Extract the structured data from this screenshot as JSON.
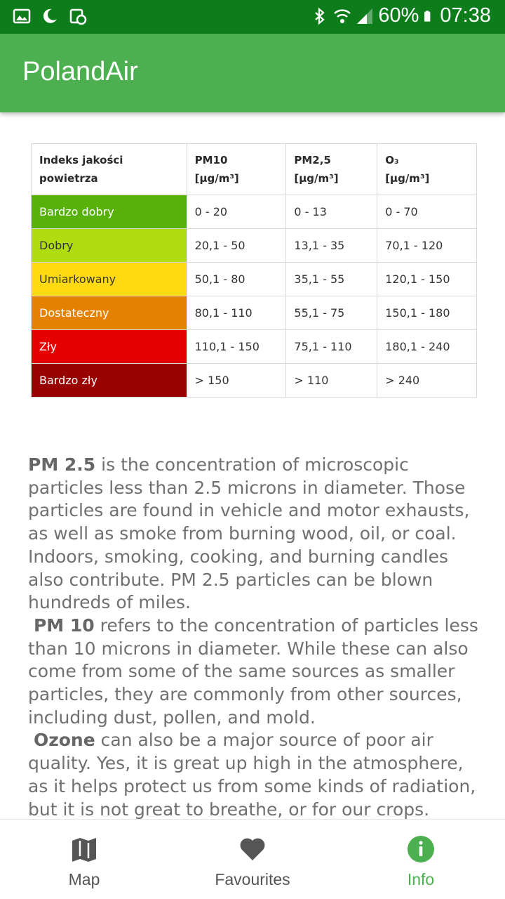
{
  "status_bar": {
    "battery": "60%",
    "time": "07:38",
    "icons": [
      "image-icon",
      "moon-icon",
      "sync-icon",
      "bluetooth-icon",
      "wifi-icon",
      "signal-icon",
      "battery-icon"
    ]
  },
  "app": {
    "title": "PolandAir"
  },
  "table": {
    "headers": [
      {
        "line1": "Indeks jakości",
        "line2": "powietrza"
      },
      {
        "line1": "PM10",
        "line2": "[µg/m³]"
      },
      {
        "line1": "PM2,5",
        "line2": "[µg/m³]"
      },
      {
        "line1": "O₃",
        "line2": "[µg/m³]"
      }
    ],
    "rows": [
      {
        "label": "Bardzo dobry",
        "color": "#57b108",
        "text_color": "#ffffff",
        "pm10": "0 - 20",
        "pm25": "0 - 13",
        "o3": "0 - 70"
      },
      {
        "label": "Dobry",
        "color": "#b0dd10",
        "text_color": "#333333",
        "pm10": "20,1 - 50",
        "pm25": "13,1 - 35",
        "o3": "70,1 - 120"
      },
      {
        "label": "Umiarkowany",
        "color": "#ffd911",
        "text_color": "#333333",
        "pm10": "50,1 - 80",
        "pm25": "35,1 - 55",
        "o3": "120,1 - 150"
      },
      {
        "label": "Dostateczny",
        "color": "#e58100",
        "text_color": "#ffffff",
        "pm10": "80,1 - 110",
        "pm25": "55,1 - 75",
        "o3": "150,1 - 180"
      },
      {
        "label": "Zły",
        "color": "#e50000",
        "text_color": "#ffffff",
        "pm10": "110,1 - 150",
        "pm25": "75,1 - 110",
        "o3": "180,1 - 240"
      },
      {
        "label": "Bardzo zły",
        "color": "#990000",
        "text_color": "#ffffff",
        "pm10": "> 150",
        "pm25": "> 110",
        "o3": "> 240"
      }
    ]
  },
  "description": {
    "pm25_term": "PM 2.5",
    "pm25_text": " is the concentration of microscopic particles less than 2.5 microns in diameter. Those particles are found in vehicle and motor exhausts, as well as smoke from burning wood, oil, or coal. Indoors, smoking, cooking, and burning candles also contribute. PM 2.5 particles can be blown hundreds of miles.",
    "pm10_term": "PM 10",
    "pm10_text": " refers to the concentration of particles less than 10 microns in diameter. While these can also come from some of the same sources as smaller particles, they are commonly from other sources, including dust, pollen, and mold.",
    "ozone_term": "Ozone",
    "ozone_text": " can also be a major source of poor air quality. Yes, it is great up high in the atmosphere, as it helps protect us from some kinds of radiation, but it is not great to breathe, or for our crops. Vehicle"
  },
  "nav": {
    "map": "Map",
    "favourites": "Favourites",
    "info": "Info",
    "active": "info",
    "active_color": "#4caf50",
    "inactive_color": "#555555"
  },
  "colors": {
    "status_bar": "#0d7d1c",
    "app_bar": "#4caf50"
  }
}
